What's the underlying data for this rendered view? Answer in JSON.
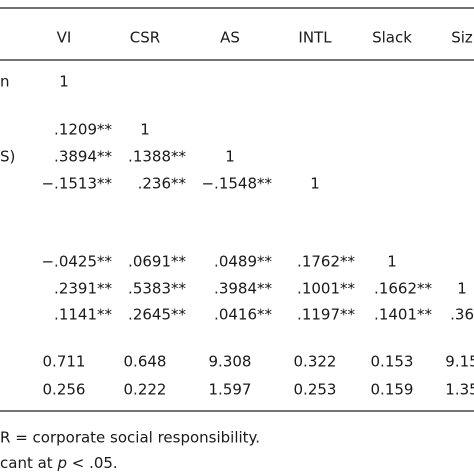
{
  "table": {
    "header": [
      "VI",
      "CSR",
      "AS",
      "INTL",
      "Slack",
      "Siz"
    ],
    "rows": [
      {
        "label": "n",
        "cells": [
          "1"
        ]
      },
      {
        "label": null,
        "cells": [
          ".1209**",
          "1"
        ]
      },
      {
        "label": "S)",
        "cells": [
          ".3894**",
          ".1388**",
          "1"
        ]
      },
      {
        "label": null,
        "cells": [
          "−.1513**",
          ".236**",
          "−.1548**",
          "1"
        ]
      },
      {
        "label": null,
        "cells": [
          "−.0425**",
          ".0691**",
          ".0489**",
          ".1762**",
          "1"
        ]
      },
      {
        "label": null,
        "cells": [
          ".2391**",
          ".5383**",
          ".3984**",
          ".1001**",
          ".1662**",
          "1"
        ]
      },
      {
        "label": null,
        "cells": [
          ".1141**",
          ".2645**",
          ".0416**",
          ".1197**",
          ".1401**",
          ".36"
        ]
      },
      {
        "label": null,
        "cells": [
          "0.711",
          "0.648",
          "9.308",
          "0.322",
          "0.153",
          "9.15"
        ]
      },
      {
        "label": null,
        "cells": [
          "0.256",
          "0.222",
          "1.597",
          "0.253",
          "0.159",
          "1.35"
        ]
      }
    ]
  },
  "notes": [
    "R = corporate social responsibility.",
    {
      "before": "cant at ",
      "italic": "p",
      "after": " < .05."
    }
  ]
}
